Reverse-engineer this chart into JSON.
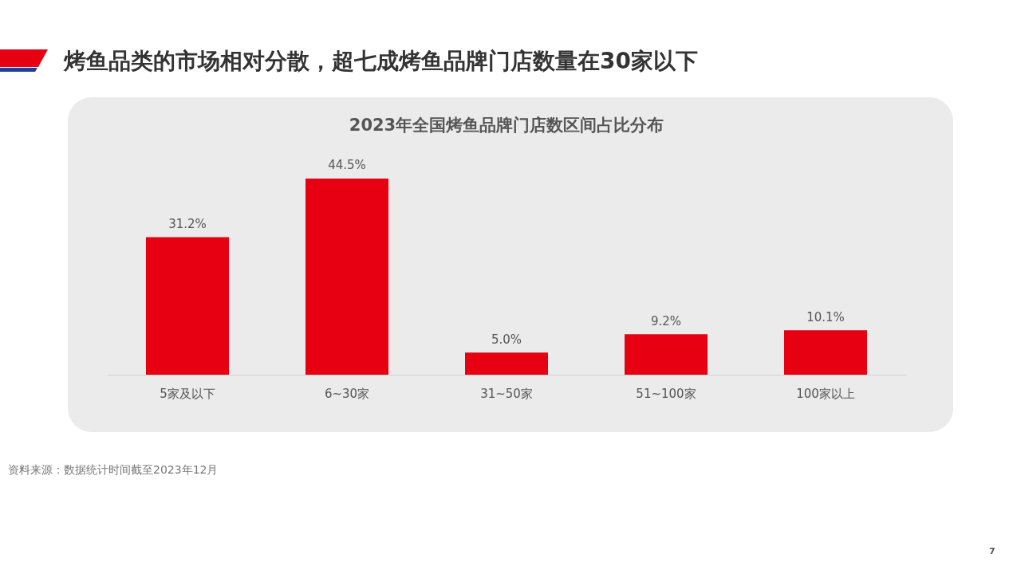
{
  "chart_data": {
    "type": "bar",
    "title": "烤鱼品类的市场相对分散，超七成烤鱼品牌门店数量在30家以下",
    "subtitle": "2023年全国烤鱼品牌门店数区间占比分布",
    "categories": [
      "5家及以下",
      "6~30家",
      "31~50家",
      "51~100家",
      "100家以上"
    ],
    "values": [
      31.2,
      44.5,
      5.0,
      9.2,
      10.1
    ],
    "value_labels": [
      "31.2%",
      "44.5%",
      "5.0%",
      "9.2%",
      "10.1%"
    ],
    "color": "#e60012",
    "grid": false,
    "legend": false,
    "tick_labels": "x",
    "annotations": [
      "资料来源：数据统计时间截至2023年12月",
      "7"
    ]
  }
}
